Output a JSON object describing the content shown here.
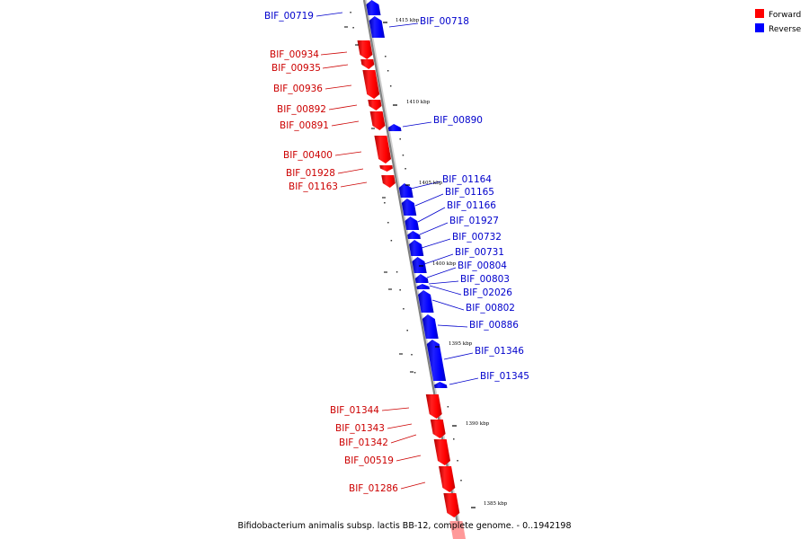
{
  "caption": "Bifidobacterium animalis subsp. lactis BB-12, complete genome. - 0..1942198",
  "legend": [
    {
      "label": "Forward",
      "color": "#ff0000"
    },
    {
      "label": "Reverse",
      "color": "#0000ff"
    }
  ],
  "scale_ticks": [
    "1415 kbp",
    "1410 kbp",
    "1405 kbp",
    "1400 kbp",
    "1395 kbp",
    "1390 kbp",
    "1385 kbp"
  ],
  "genes_forward": [
    "BIF_00934",
    "BIF_00935",
    "BIF_00936",
    "BIF_00892",
    "BIF_00891",
    "BIF_00400",
    "BIF_01928",
    "BIF_01163",
    "BIF_01344",
    "BIF_01343",
    "BIF_01342",
    "BIF_00519",
    "BIF_01286"
  ],
  "genes_reverse": [
    "BIF_00719",
    "BIF_00718",
    "BIF_00890",
    "BIF_01164",
    "BIF_01165",
    "BIF_01166",
    "BIF_01927",
    "BIF_00732",
    "BIF_00731",
    "BIF_00804",
    "BIF_00803",
    "BIF_02026",
    "BIF_00802",
    "BIF_00886",
    "BIF_01346",
    "BIF_01345"
  ]
}
